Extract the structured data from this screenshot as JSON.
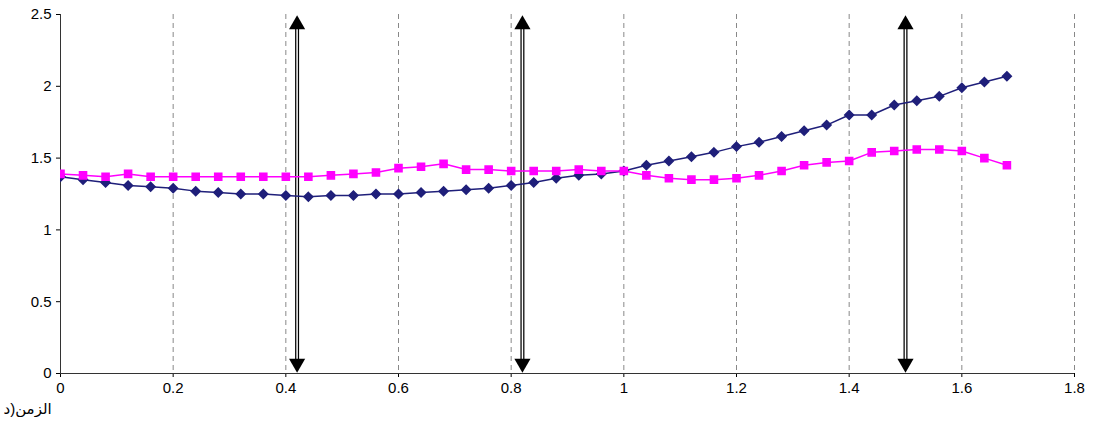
{
  "chart_data": {
    "type": "line",
    "x_label": "الزمن(د",
    "x": [
      0,
      0.04,
      0.08,
      0.12,
      0.16,
      0.2,
      0.24,
      0.28,
      0.32,
      0.36,
      0.4,
      0.44,
      0.48,
      0.52,
      0.56,
      0.6,
      0.64,
      0.68,
      0.72,
      0.76,
      0.8,
      0.84,
      0.88,
      0.92,
      0.96,
      1.0,
      1.04,
      1.08,
      1.12,
      1.16,
      1.2,
      1.24,
      1.28,
      1.32,
      1.36,
      1.4,
      1.44,
      1.48,
      1.52,
      1.56,
      1.6,
      1.64,
      1.68
    ],
    "series": [
      {
        "color": "#1f1f7a",
        "marker": "diamond",
        "line_style": "solid",
        "values": [
          1.37,
          1.35,
          1.33,
          1.31,
          1.3,
          1.29,
          1.27,
          1.26,
          1.25,
          1.25,
          1.24,
          1.23,
          1.24,
          1.24,
          1.25,
          1.25,
          1.26,
          1.27,
          1.28,
          1.29,
          1.31,
          1.33,
          1.36,
          1.38,
          1.39,
          1.41,
          1.45,
          1.48,
          1.51,
          1.54,
          1.58,
          1.61,
          1.65,
          1.69,
          1.73,
          1.8,
          1.8,
          1.87,
          1.9,
          1.93,
          1.99,
          2.03,
          2.07
        ]
      },
      {
        "color": "#ff00ff",
        "marker": "square",
        "line_style": "solid",
        "values": [
          1.39,
          1.38,
          1.37,
          1.39,
          1.37,
          1.37,
          1.37,
          1.37,
          1.37,
          1.37,
          1.37,
          1.37,
          1.38,
          1.39,
          1.4,
          1.43,
          1.44,
          1.46,
          1.42,
          1.42,
          1.41,
          1.41,
          1.41,
          1.42,
          1.41,
          1.41,
          1.38,
          1.36,
          1.35,
          1.35,
          1.36,
          1.38,
          1.41,
          1.45,
          1.47,
          1.48,
          1.54,
          1.55,
          1.56,
          1.56,
          1.55,
          1.5,
          1.45
        ]
      }
    ],
    "arrows": [
      0.42,
      0.82,
      1.5
    ],
    "xlim": [
      0,
      1.8
    ],
    "xticks": [
      0,
      0.2,
      0.4,
      0.6,
      0.8,
      1,
      1.2,
      1.4,
      1.6,
      1.8
    ],
    "ylim": [
      0,
      2.5
    ],
    "yticks": [
      0,
      0.5,
      1,
      1.5,
      2,
      2.5
    ],
    "grid": "x"
  }
}
